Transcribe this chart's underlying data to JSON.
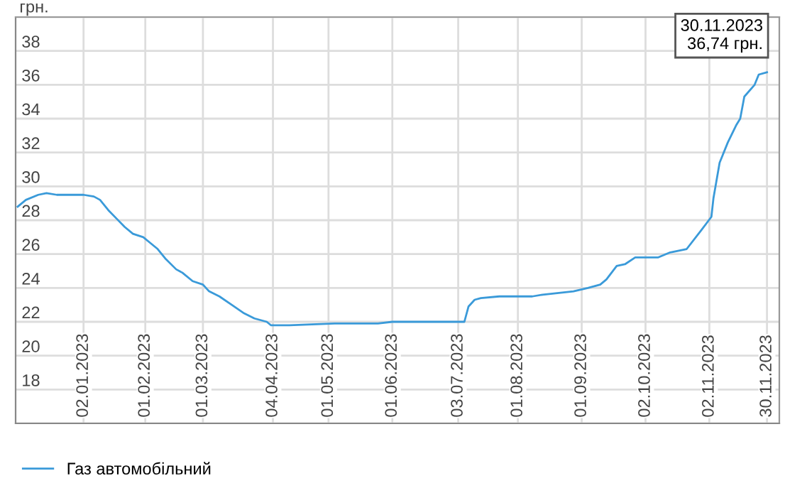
{
  "chart_data": {
    "type": "line",
    "ylabel": "грн.",
    "x": [
      "2022-12-01",
      "2022-12-05",
      "2022-12-11",
      "2022-12-15",
      "2022-12-20",
      "2023-01-02",
      "2023-01-07",
      "2023-01-10",
      "2023-01-14",
      "2023-01-18",
      "2023-01-22",
      "2023-01-26",
      "2023-01-31",
      "2023-02-03",
      "2023-02-07",
      "2023-02-11",
      "2023-02-16",
      "2023-02-19",
      "2023-02-24",
      "2023-03-01",
      "2023-03-04",
      "2023-03-09",
      "2023-03-15",
      "2023-03-21",
      "2023-03-26",
      "2023-04-01",
      "2023-04-03",
      "2023-04-07",
      "2023-04-12",
      "2023-05-04",
      "2023-05-14",
      "2023-05-25",
      "2023-06-01",
      "2023-06-06",
      "2023-06-17",
      "2023-07-06",
      "2023-07-08",
      "2023-07-11",
      "2023-07-14",
      "2023-07-23",
      "2023-08-08",
      "2023-08-13",
      "2023-08-28",
      "2023-09-04",
      "2023-09-10",
      "2023-09-13",
      "2023-09-18",
      "2023-09-22",
      "2023-09-27",
      "2023-10-08",
      "2023-10-14",
      "2023-10-22",
      "2023-10-29",
      "2023-11-03",
      "2023-11-04",
      "2023-11-07",
      "2023-11-11",
      "2023-11-15",
      "2023-11-17",
      "2023-11-19",
      "2023-11-24",
      "2023-11-26",
      "2023-11-30"
    ],
    "series": [
      {
        "name": "Газ автомобільний",
        "color": "#3a9ad9",
        "values": [
          28.8,
          29.2,
          29.5,
          29.6,
          29.5,
          29.5,
          29.4,
          29.2,
          28.6,
          28.1,
          27.6,
          27.2,
          27.0,
          26.7,
          26.3,
          25.7,
          25.1,
          24.9,
          24.4,
          24.2,
          23.8,
          23.5,
          23.0,
          22.5,
          22.2,
          22.0,
          21.8,
          21.8,
          21.8,
          21.9,
          21.9,
          21.9,
          22.0,
          22.0,
          22.0,
          22.0,
          22.9,
          23.3,
          23.4,
          23.5,
          23.5,
          23.6,
          23.8,
          24.0,
          24.2,
          24.5,
          25.3,
          25.4,
          25.8,
          25.8,
          26.1,
          26.3,
          27.4,
          28.2,
          29.3,
          31.4,
          32.6,
          33.6,
          34.0,
          35.3,
          36.0,
          36.6,
          36.74
        ]
      }
    ],
    "xlim": [
      "2022-11-30",
      "2023-12-06"
    ],
    "xticks": [
      {
        "value": "2023-01-02",
        "label": "02.01.2023"
      },
      {
        "value": "2023-02-01",
        "label": "01.02.2023"
      },
      {
        "value": "2023-03-01",
        "label": "01.03.2023"
      },
      {
        "value": "2023-04-04",
        "label": "04.04.2023"
      },
      {
        "value": "2023-05-01",
        "label": "01.05.2023"
      },
      {
        "value": "2023-06-01",
        "label": "01.06.2023"
      },
      {
        "value": "2023-07-03",
        "label": "03.07.2023"
      },
      {
        "value": "2023-08-01",
        "label": "01.08.2023"
      },
      {
        "value": "2023-09-01",
        "label": "01.09.2023"
      },
      {
        "value": "2023-10-02",
        "label": "02.10.2023"
      },
      {
        "value": "2023-11-02",
        "label": "02.11.2023"
      },
      {
        "value": "2023-11-30",
        "label": "30.11.2023"
      }
    ],
    "ylim": [
      16,
      40
    ],
    "yticks": [
      {
        "value": 16,
        "label": null
      },
      18,
      20,
      22,
      24,
      26,
      28,
      30,
      32,
      34,
      36,
      38,
      {
        "value": 40,
        "label": null
      }
    ],
    "annotations": [
      {
        "text": "30.11.2023\n36,74 грн.",
        "x": "2023-11-30",
        "y": 36.74
      }
    ],
    "grid": true,
    "legend": "bottom",
    "marker": "none",
    "line_style": "solid"
  }
}
